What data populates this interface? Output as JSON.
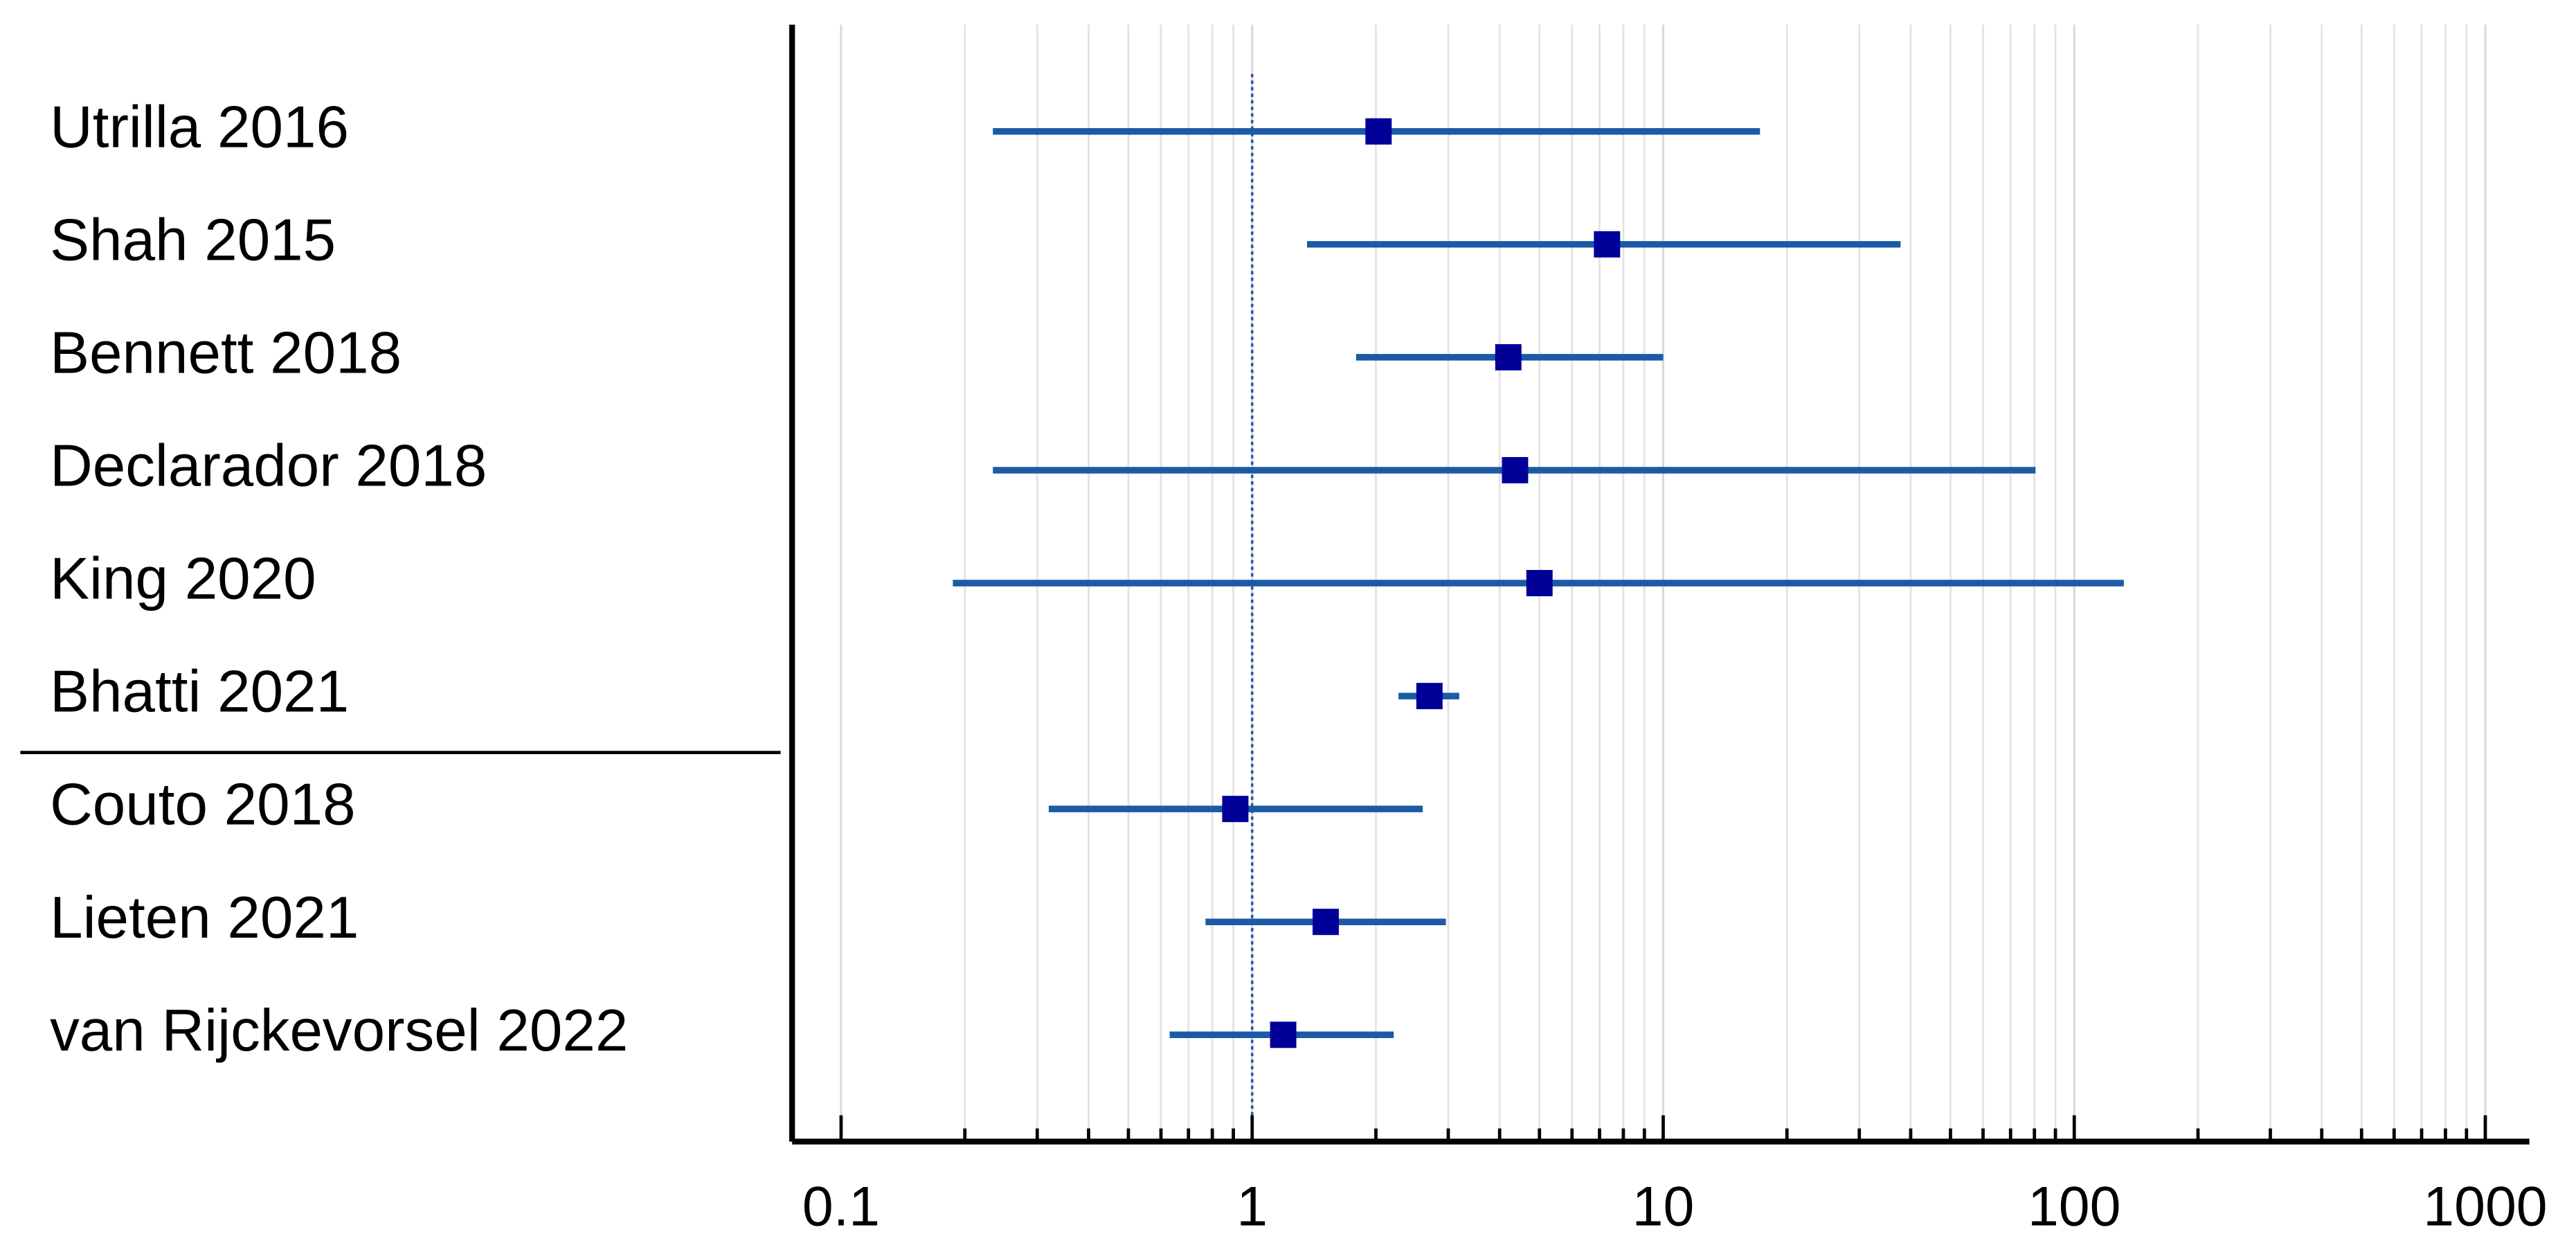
{
  "chart_data": {
    "type": "forest",
    "categories": [
      "Utrilla 2016",
      "Shah 2015",
      "Bennett 2018",
      "Declarador 2018",
      "King 2020",
      "Bhatti 2021",
      "Couto 2018",
      "Lieten 2021",
      "van Rijckevorsel 2022"
    ],
    "values": [
      2.03,
      7.3,
      4.2,
      4.36,
      5.0,
      2.7,
      0.91,
      1.51,
      1.19
    ],
    "lower": [
      0.234,
      1.36,
      1.79,
      0.234,
      0.187,
      2.27,
      0.32,
      0.77,
      0.63
    ],
    "upper": [
      17.2,
      37.8,
      10,
      80.5,
      132,
      3.19,
      2.6,
      2.96,
      2.21
    ],
    "color": "#1c5aa6",
    "marker_color": "#000099",
    "xlim": [
      0.076,
      1280
    ],
    "xticks": [
      0.1,
      1,
      10,
      100,
      1000
    ],
    "log_x": true,
    "grid": true,
    "reference_line": 1,
    "divider_before": 6
  }
}
